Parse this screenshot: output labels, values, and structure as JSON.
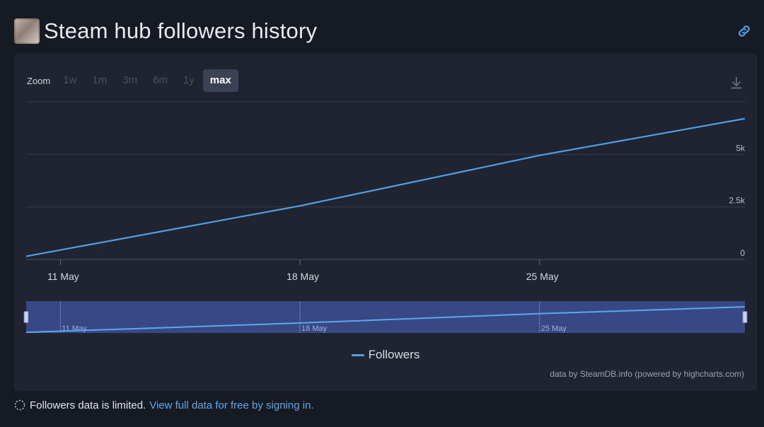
{
  "header": {
    "title": "Steam hub followers history",
    "link_icon": "link-icon",
    "avatar_icon": "game-avatar"
  },
  "toolbar": {
    "zoom_label": "Zoom",
    "zoom_options": [
      "1w",
      "1m",
      "3m",
      "6m",
      "1y",
      "max"
    ],
    "selected": "max",
    "download_icon": "download-icon"
  },
  "colors": {
    "series": "#4ea0e8",
    "background": "#161a22",
    "panel": "#1f2430",
    "navigator_fill": "#3c4f93",
    "link": "#5aa8ef"
  },
  "chart_data": {
    "type": "line",
    "title": "Steam hub followers history",
    "xlabel": "",
    "ylabel": "",
    "x_ticks": [
      "11 May",
      "18 May",
      "25 May"
    ],
    "y_ticks": [
      "0",
      "2.5k",
      "5k"
    ],
    "x_range": [
      "2024-05-10",
      "2024-05-31"
    ],
    "ylim": [
      0,
      7500
    ],
    "grid": true,
    "legend_position": "bottom-center",
    "series": [
      {
        "name": "Followers",
        "x": [
          "2024-05-10",
          "2024-05-18",
          "2024-05-25",
          "2024-05-31"
        ],
        "values": [
          150,
          2550,
          4950,
          6700
        ]
      }
    ],
    "navigator": {
      "x_ticks": [
        "11 May",
        "18 May",
        "25 May"
      ],
      "range": "full"
    }
  },
  "credits": "data by SteamDB.info (powered by highcharts.com)",
  "notice": {
    "icon": "spinner-icon",
    "text": "Followers data is limited.",
    "link": "View full data for free by signing in."
  }
}
